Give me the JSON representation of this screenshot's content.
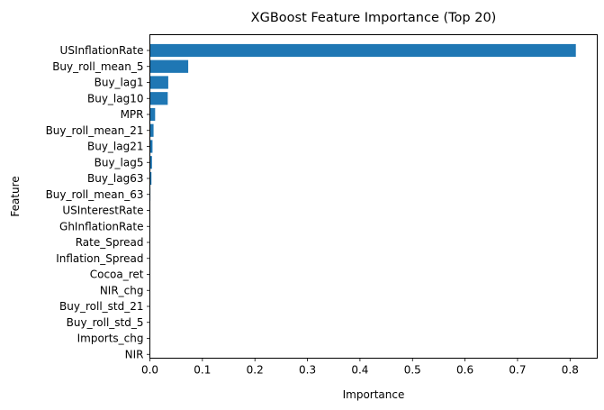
{
  "chart_data": {
    "type": "bar",
    "orientation": "horizontal",
    "title": "XGBoost Feature Importance (Top 20)",
    "xlabel": "Importance",
    "ylabel": "Feature",
    "xlim": [
      0,
      0.85
    ],
    "xticks": [
      "0.0",
      "0.1",
      "0.2",
      "0.3",
      "0.4",
      "0.5",
      "0.6",
      "0.7",
      "0.8"
    ],
    "grid": false,
    "bar_color": "#1f77b4",
    "categories": [
      "USInflationRate",
      "Buy_roll_mean_5",
      "Buy_lag1",
      "Buy_lag10",
      "MPR",
      "Buy_roll_mean_21",
      "Buy_lag21",
      "Buy_lag5",
      "Buy_lag63",
      "Buy_roll_mean_63",
      "USInterestRate",
      "GhInflationRate",
      "Rate_Spread",
      "Inflation_Spread",
      "Cocoa_ret",
      "NIR_chg",
      "Buy_roll_std_21",
      "Buy_roll_std_5",
      "Imports_chg",
      "NIR"
    ],
    "values": [
      0.811,
      0.073,
      0.035,
      0.034,
      0.01,
      0.007,
      0.005,
      0.004,
      0.003,
      0.001,
      0.0008,
      0.0006,
      0.0005,
      0.0004,
      0.0003,
      0.0002,
      0.0002,
      0.0001,
      0.0001,
      0.0
    ]
  }
}
